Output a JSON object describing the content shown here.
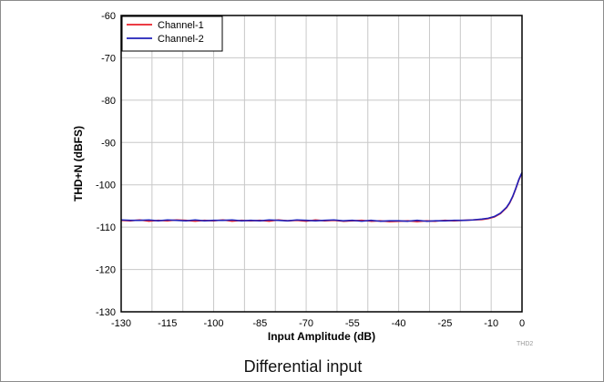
{
  "caption": "Differential input",
  "figure_code": "THD2",
  "chart_data": {
    "type": "line",
    "title": "",
    "xlabel": "Input Amplitude (dB)",
    "ylabel": "THD+N (dBFS)",
    "xlim": [
      -130,
      0
    ],
    "ylim": [
      -130,
      -60
    ],
    "xticks": [
      -130,
      -115,
      -100,
      -85,
      -70,
      -55,
      -40,
      -25,
      -10,
      0
    ],
    "yticks": [
      -60,
      -70,
      -80,
      -90,
      -100,
      -110,
      -120,
      -130
    ],
    "x_grid": [
      -130,
      -120,
      -110,
      -100,
      -90,
      -80,
      -70,
      -60,
      -50,
      -40,
      -30,
      -20,
      -10,
      0
    ],
    "grid": true,
    "legend_position": "top-left",
    "series": [
      {
        "name": "Channel-1",
        "color": "#e8202a",
        "x": [
          -130,
          -127,
          -124,
          -121,
          -118,
          -115,
          -112,
          -109,
          -106,
          -103,
          -100,
          -97,
          -94,
          -91,
          -88,
          -85,
          -82,
          -79,
          -76,
          -73,
          -70,
          -67,
          -64,
          -61,
          -58,
          -55,
          -52,
          -49,
          -46,
          -43,
          -40,
          -37,
          -34,
          -31,
          -28,
          -25,
          -22,
          -19,
          -16,
          -13,
          -11,
          -9,
          -7,
          -5,
          -4,
          -3,
          -2,
          -1,
          0
        ],
        "y": [
          -108.4,
          -108.5,
          -108.3,
          -108.6,
          -108.4,
          -108.5,
          -108.3,
          -108.4,
          -108.6,
          -108.4,
          -108.5,
          -108.3,
          -108.6,
          -108.4,
          -108.5,
          -108.4,
          -108.6,
          -108.3,
          -108.5,
          -108.4,
          -108.6,
          -108.3,
          -108.5,
          -108.4,
          -108.6,
          -108.5,
          -108.4,
          -108.6,
          -108.5,
          -108.7,
          -108.6,
          -108.5,
          -108.7,
          -108.5,
          -108.6,
          -108.4,
          -108.5,
          -108.4,
          -108.3,
          -108.2,
          -108.0,
          -107.6,
          -106.8,
          -105.4,
          -104.3,
          -102.8,
          -100.9,
          -98.8,
          -97.2
        ]
      },
      {
        "name": "Channel-2",
        "color": "#2020b8",
        "x": [
          -130,
          -127,
          -124,
          -121,
          -118,
          -115,
          -112,
          -109,
          -106,
          -103,
          -100,
          -97,
          -94,
          -91,
          -88,
          -85,
          -82,
          -79,
          -76,
          -73,
          -70,
          -67,
          -64,
          -61,
          -58,
          -55,
          -52,
          -49,
          -46,
          -43,
          -40,
          -37,
          -34,
          -31,
          -28,
          -25,
          -22,
          -19,
          -16,
          -13,
          -11,
          -9,
          -7,
          -5,
          -4,
          -3,
          -2,
          -1,
          0
        ],
        "y": [
          -108.3,
          -108.4,
          -108.4,
          -108.3,
          -108.5,
          -108.3,
          -108.4,
          -108.5,
          -108.3,
          -108.5,
          -108.4,
          -108.4,
          -108.3,
          -108.5,
          -108.4,
          -108.5,
          -108.3,
          -108.4,
          -108.5,
          -108.3,
          -108.4,
          -108.5,
          -108.4,
          -108.3,
          -108.5,
          -108.4,
          -108.6,
          -108.4,
          -108.6,
          -108.5,
          -108.5,
          -108.6,
          -108.4,
          -108.6,
          -108.5,
          -108.5,
          -108.4,
          -108.4,
          -108.3,
          -108.1,
          -107.9,
          -107.5,
          -106.7,
          -105.3,
          -104.2,
          -102.7,
          -100.8,
          -98.7,
          -97.1
        ]
      }
    ]
  }
}
